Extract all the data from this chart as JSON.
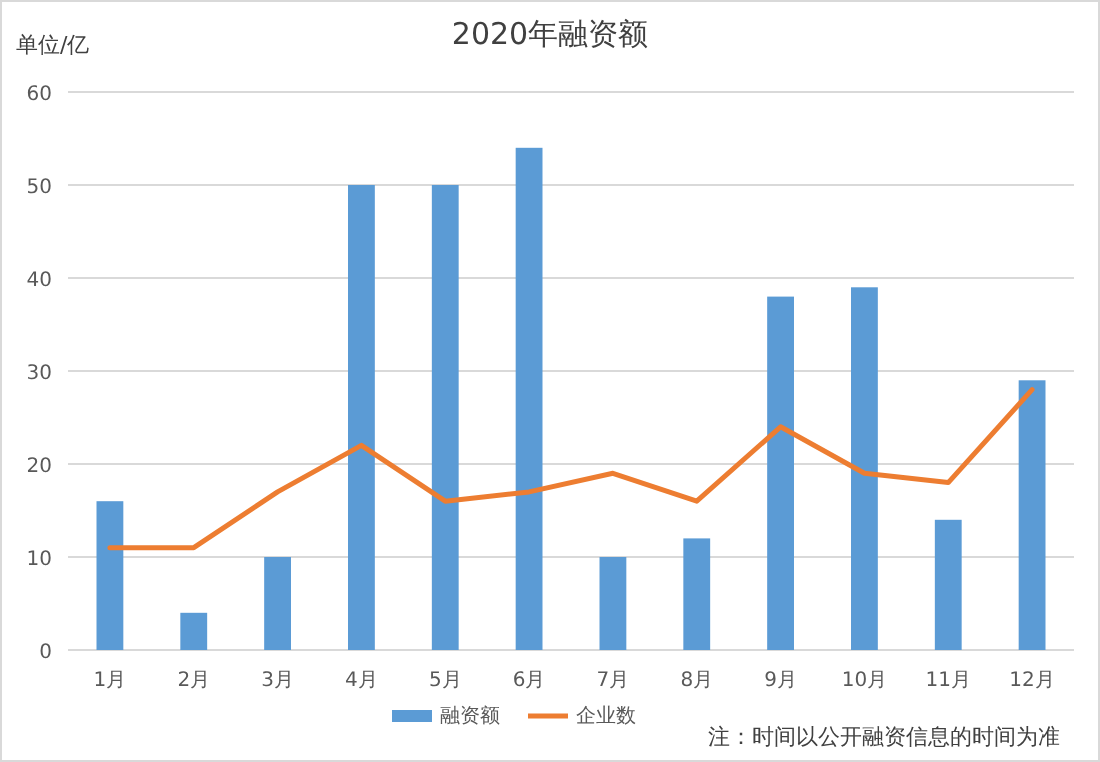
{
  "chart_data": {
    "type": "bar",
    "title": "2020年融资额",
    "ylabel": "单位/亿",
    "categories": [
      "1月",
      "2月",
      "3月",
      "4月",
      "5月",
      "6月",
      "7月",
      "8月",
      "9月",
      "10月",
      "11月",
      "12月"
    ],
    "series": [
      {
        "name": "融资额",
        "color": "#5b9bd5",
        "values": [
          16,
          4,
          10,
          50,
          50,
          54,
          10,
          12,
          38,
          39,
          14,
          29
        ]
      },
      {
        "name": "企业数",
        "type": "line",
        "color": "#ed7d31",
        "values": [
          11,
          11,
          17,
          22,
          16,
          17,
          19,
          16,
          24,
          19,
          18,
          28
        ]
      }
    ],
    "ylim": [
      0,
      60
    ],
    "yticks": [
      0,
      10,
      20,
      30,
      40,
      50,
      60
    ],
    "grid": "y",
    "legend": "bottom",
    "annotations": [
      "注：时间以公开融资信息的时间为准"
    ]
  }
}
